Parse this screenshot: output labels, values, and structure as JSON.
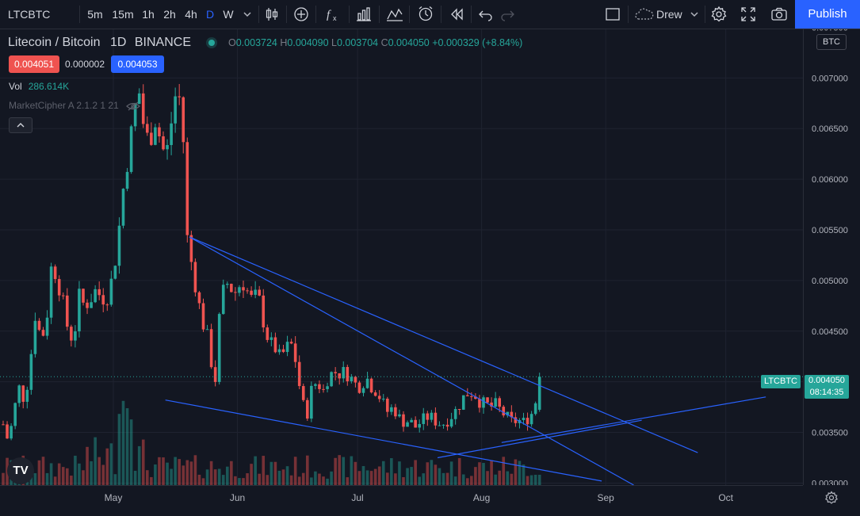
{
  "toolbar": {
    "symbol": "LTCBTC",
    "intervals": [
      {
        "label": "5m",
        "active": false
      },
      {
        "label": "15m",
        "active": false
      },
      {
        "label": "1h",
        "active": false
      },
      {
        "label": "2h",
        "active": false
      },
      {
        "label": "4h",
        "active": false
      },
      {
        "label": "D",
        "active": true
      },
      {
        "label": "W",
        "active": false
      }
    ],
    "drew_label": "Drew",
    "publish_label": "Publish"
  },
  "legend": {
    "pair": "Litecoin / Bitcoin",
    "interval": "1D",
    "exchange": "BINANCE",
    "open_label": "O",
    "open": "0.003724",
    "high_label": "H",
    "high": "0.004090",
    "low_label": "L",
    "low": "0.003704",
    "close_label": "C",
    "close": "0.004050",
    "change": "+0.000329 (+8.84%)",
    "sell": "0.004051",
    "spread": "0.000002",
    "buy": "0.004053",
    "vol_label": "Vol",
    "vol_value": "286.614K",
    "indicator": "MarketCipher A 2.1.2 1 21"
  },
  "price_axis": {
    "currency": "BTC",
    "last_price": "0.004050",
    "countdown": "08:14:35",
    "symbol_tag": "LTCBTC"
  },
  "logo": "TV",
  "colors": {
    "up": "#26a69a",
    "down": "#ef5350",
    "trendline": "#2962ff",
    "accent": "#2962ff"
  },
  "chart_data": {
    "type": "candlestick",
    "x_ticks": [
      "May",
      "Jun",
      "Jul",
      "Aug",
      "Sep",
      "Oct"
    ],
    "y_ticks": [
      "0.003000",
      "0.003500",
      "0.004000",
      "0.004500",
      "0.005000",
      "0.005500",
      "0.006000",
      "0.006500",
      "0.007000",
      "0.007500"
    ],
    "ylim": [
      0.00298,
      0.00748
    ],
    "close_series": [
      0.00358,
      0.0034,
      0.00372,
      0.00395,
      0.0038,
      0.0042,
      0.0047,
      0.0044,
      0.0046,
      0.0052,
      0.005,
      0.0048,
      0.0045,
      0.0044,
      0.00485,
      0.00475,
      0.0048,
      0.0049,
      0.00485,
      0.0048,
      0.005,
      0.0053,
      0.00585,
      0.0062,
      0.0066,
      0.0069,
      0.0065,
      0.00635,
      0.0066,
      0.0064,
      0.0062,
      0.00655,
      0.0069,
      0.0067,
      0.0054,
      0.0051,
      0.0048,
      0.00455,
      0.0044,
      0.0039,
      0.0047,
      0.005,
      0.00492,
      0.00488,
      0.005,
      0.0049,
      0.0048,
      0.00488,
      0.0046,
      0.0044,
      0.00435,
      0.00425,
      0.0043,
      0.0044,
      0.0042,
      0.00385,
      0.00365,
      0.00395,
      0.004,
      0.0039,
      0.00405,
      0.0041,
      0.00408,
      0.0041,
      0.00405,
      0.00398,
      0.00395,
      0.00405,
      0.00395,
      0.0039,
      0.0038,
      0.0037,
      0.00375,
      0.00365,
      0.0036,
      0.00362,
      0.00355,
      0.0036,
      0.00365,
      0.00365,
      0.0036,
      0.00358,
      0.00362,
      0.00368,
      0.00375,
      0.00385,
      0.0039,
      0.00388,
      0.0038,
      0.00378,
      0.00375,
      0.00378,
      0.0037,
      0.00365,
      0.0036,
      0.00362,
      0.0036,
      0.00365,
      0.00372,
      0.00405
    ],
    "volume_note": "volume histogram at bottom",
    "trendlines": [
      {
        "from": [
          "May-20",
          0.00543
        ],
        "to": [
          "Sep-24",
          0.0033
        ]
      },
      {
        "from": [
          "May-20",
          0.00543
        ],
        "to": [
          "Sep-08",
          0.00298
        ]
      },
      {
        "from": [
          "May-14",
          0.00382
        ],
        "to": [
          "Aug-31",
          0.00302
        ]
      },
      {
        "from": [
          "Jul-21",
          0.00325
        ],
        "to": [
          "Sep-10",
          0.00362
        ]
      },
      {
        "from": [
          "Aug-06",
          0.0034
        ],
        "to": [
          "Oct-11",
          0.00385
        ]
      }
    ]
  }
}
